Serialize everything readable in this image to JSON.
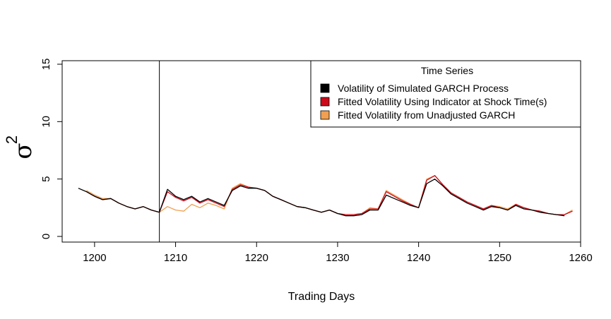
{
  "chart_data": {
    "type": "line",
    "xlabel": "Trading Days",
    "ylabel": "σ",
    "ylabel_superscript": "2",
    "xlim": [
      1196,
      1260
    ],
    "ylim": [
      0,
      15
    ],
    "x_ticks": [
      1200,
      1210,
      1220,
      1230,
      1240,
      1250,
      1260
    ],
    "y_ticks": [
      0,
      5,
      10,
      15
    ],
    "vertical_line_x": 1208,
    "legend": {
      "title": "Time Series",
      "placement": "top-right"
    },
    "series": [
      {
        "name": "Volatility of Simulated GARCH Process",
        "color": "#000000",
        "x": [
          1198,
          1199,
          1200,
          1201,
          1202,
          1203,
          1204,
          1205,
          1206,
          1207,
          1208,
          1209,
          1210,
          1211,
          1212,
          1213,
          1214,
          1215,
          1216,
          1217,
          1218,
          1219,
          1220,
          1221,
          1222,
          1223,
          1224,
          1225,
          1226,
          1227,
          1228,
          1229,
          1230,
          1231,
          1232,
          1233,
          1234,
          1235,
          1236,
          1237,
          1238,
          1239,
          1240,
          1241,
          1242,
          1243,
          1244,
          1245,
          1246,
          1247,
          1248,
          1249,
          1250,
          1251,
          1252,
          1253,
          1254,
          1255,
          1256,
          1257,
          1258
        ],
        "values": [
          4.2,
          3.9,
          3.5,
          3.2,
          3.3,
          2.9,
          2.6,
          2.4,
          2.6,
          2.3,
          2.1,
          4.1,
          3.5,
          3.2,
          3.5,
          3.0,
          3.3,
          3.0,
          2.7,
          4.0,
          4.4,
          4.2,
          4.2,
          4.0,
          3.5,
          3.2,
          2.9,
          2.6,
          2.5,
          2.3,
          2.1,
          2.3,
          2.0,
          1.8,
          1.8,
          1.9,
          2.3,
          2.3,
          3.6,
          3.3,
          3.0,
          2.7,
          2.5,
          4.6,
          5.0,
          4.4,
          3.7,
          3.3,
          2.9,
          2.6,
          2.3,
          2.6,
          2.5,
          2.3,
          2.7,
          2.4,
          2.3,
          2.1,
          2.0,
          1.9,
          1.8
        ]
      },
      {
        "name": "Fitted Volatility Using Indicator at Shock Time(s)",
        "color": "#cc0a1a",
        "x": [
          1199,
          1200,
          1201,
          1202,
          1203,
          1204,
          1205,
          1206,
          1207,
          1208,
          1209,
          1210,
          1211,
          1212,
          1213,
          1214,
          1215,
          1216,
          1217,
          1218,
          1219,
          1220,
          1221,
          1222,
          1223,
          1224,
          1225,
          1226,
          1227,
          1228,
          1229,
          1230,
          1231,
          1232,
          1233,
          1234,
          1235,
          1236,
          1237,
          1238,
          1239,
          1240,
          1241,
          1242,
          1243,
          1244,
          1245,
          1246,
          1247,
          1248,
          1249,
          1250,
          1251,
          1252,
          1253,
          1254,
          1255,
          1256,
          1257,
          1258,
          1259
        ],
        "values": [
          3.9,
          3.5,
          3.2,
          3.3,
          2.9,
          2.6,
          2.4,
          2.6,
          2.3,
          2.1,
          3.9,
          3.4,
          3.1,
          3.4,
          2.9,
          3.2,
          2.9,
          2.6,
          4.1,
          4.5,
          4.3,
          4.2,
          4.0,
          3.5,
          3.2,
          2.9,
          2.6,
          2.5,
          2.3,
          2.1,
          2.3,
          2.0,
          1.9,
          1.9,
          2.0,
          2.4,
          2.4,
          3.9,
          3.5,
          3.1,
          2.8,
          2.5,
          4.9,
          5.3,
          4.5,
          3.8,
          3.4,
          3.0,
          2.7,
          2.4,
          2.7,
          2.5,
          2.3,
          2.8,
          2.5,
          2.3,
          2.2,
          2.0,
          1.9,
          1.9,
          2.2
        ]
      },
      {
        "name": "Fitted Volatility from Unadjusted GARCH",
        "color": "#f0a050",
        "x": [
          1199,
          1200,
          1201,
          1202,
          1203,
          1204,
          1205,
          1206,
          1207,
          1208,
          1209,
          1210,
          1211,
          1212,
          1213,
          1214,
          1215,
          1216,
          1217,
          1218,
          1219,
          1220,
          1221,
          1222,
          1223,
          1224,
          1225,
          1226,
          1227,
          1228,
          1229,
          1230,
          1231,
          1232,
          1233,
          1234,
          1235,
          1236,
          1237,
          1238,
          1239,
          1240,
          1241,
          1242,
          1243,
          1244,
          1245,
          1246,
          1247,
          1248,
          1249,
          1250,
          1251,
          1252,
          1253,
          1254,
          1255,
          1256,
          1257,
          1258,
          1259
        ],
        "values": [
          4.0,
          3.6,
          3.3,
          3.3,
          2.9,
          2.6,
          2.4,
          2.6,
          2.3,
          2.1,
          2.6,
          2.3,
          2.2,
          2.8,
          2.5,
          2.9,
          2.7,
          2.4,
          4.2,
          4.6,
          4.3,
          4.2,
          4.0,
          3.5,
          3.2,
          2.9,
          2.6,
          2.5,
          2.3,
          2.1,
          2.3,
          2.0,
          1.9,
          1.9,
          2.0,
          2.5,
          2.4,
          4.0,
          3.6,
          3.2,
          2.8,
          2.5,
          5.0,
          5.3,
          4.5,
          3.8,
          3.4,
          3.0,
          2.7,
          2.4,
          2.7,
          2.6,
          2.4,
          2.8,
          2.5,
          2.3,
          2.2,
          2.0,
          1.9,
          1.9,
          2.3
        ]
      }
    ]
  }
}
